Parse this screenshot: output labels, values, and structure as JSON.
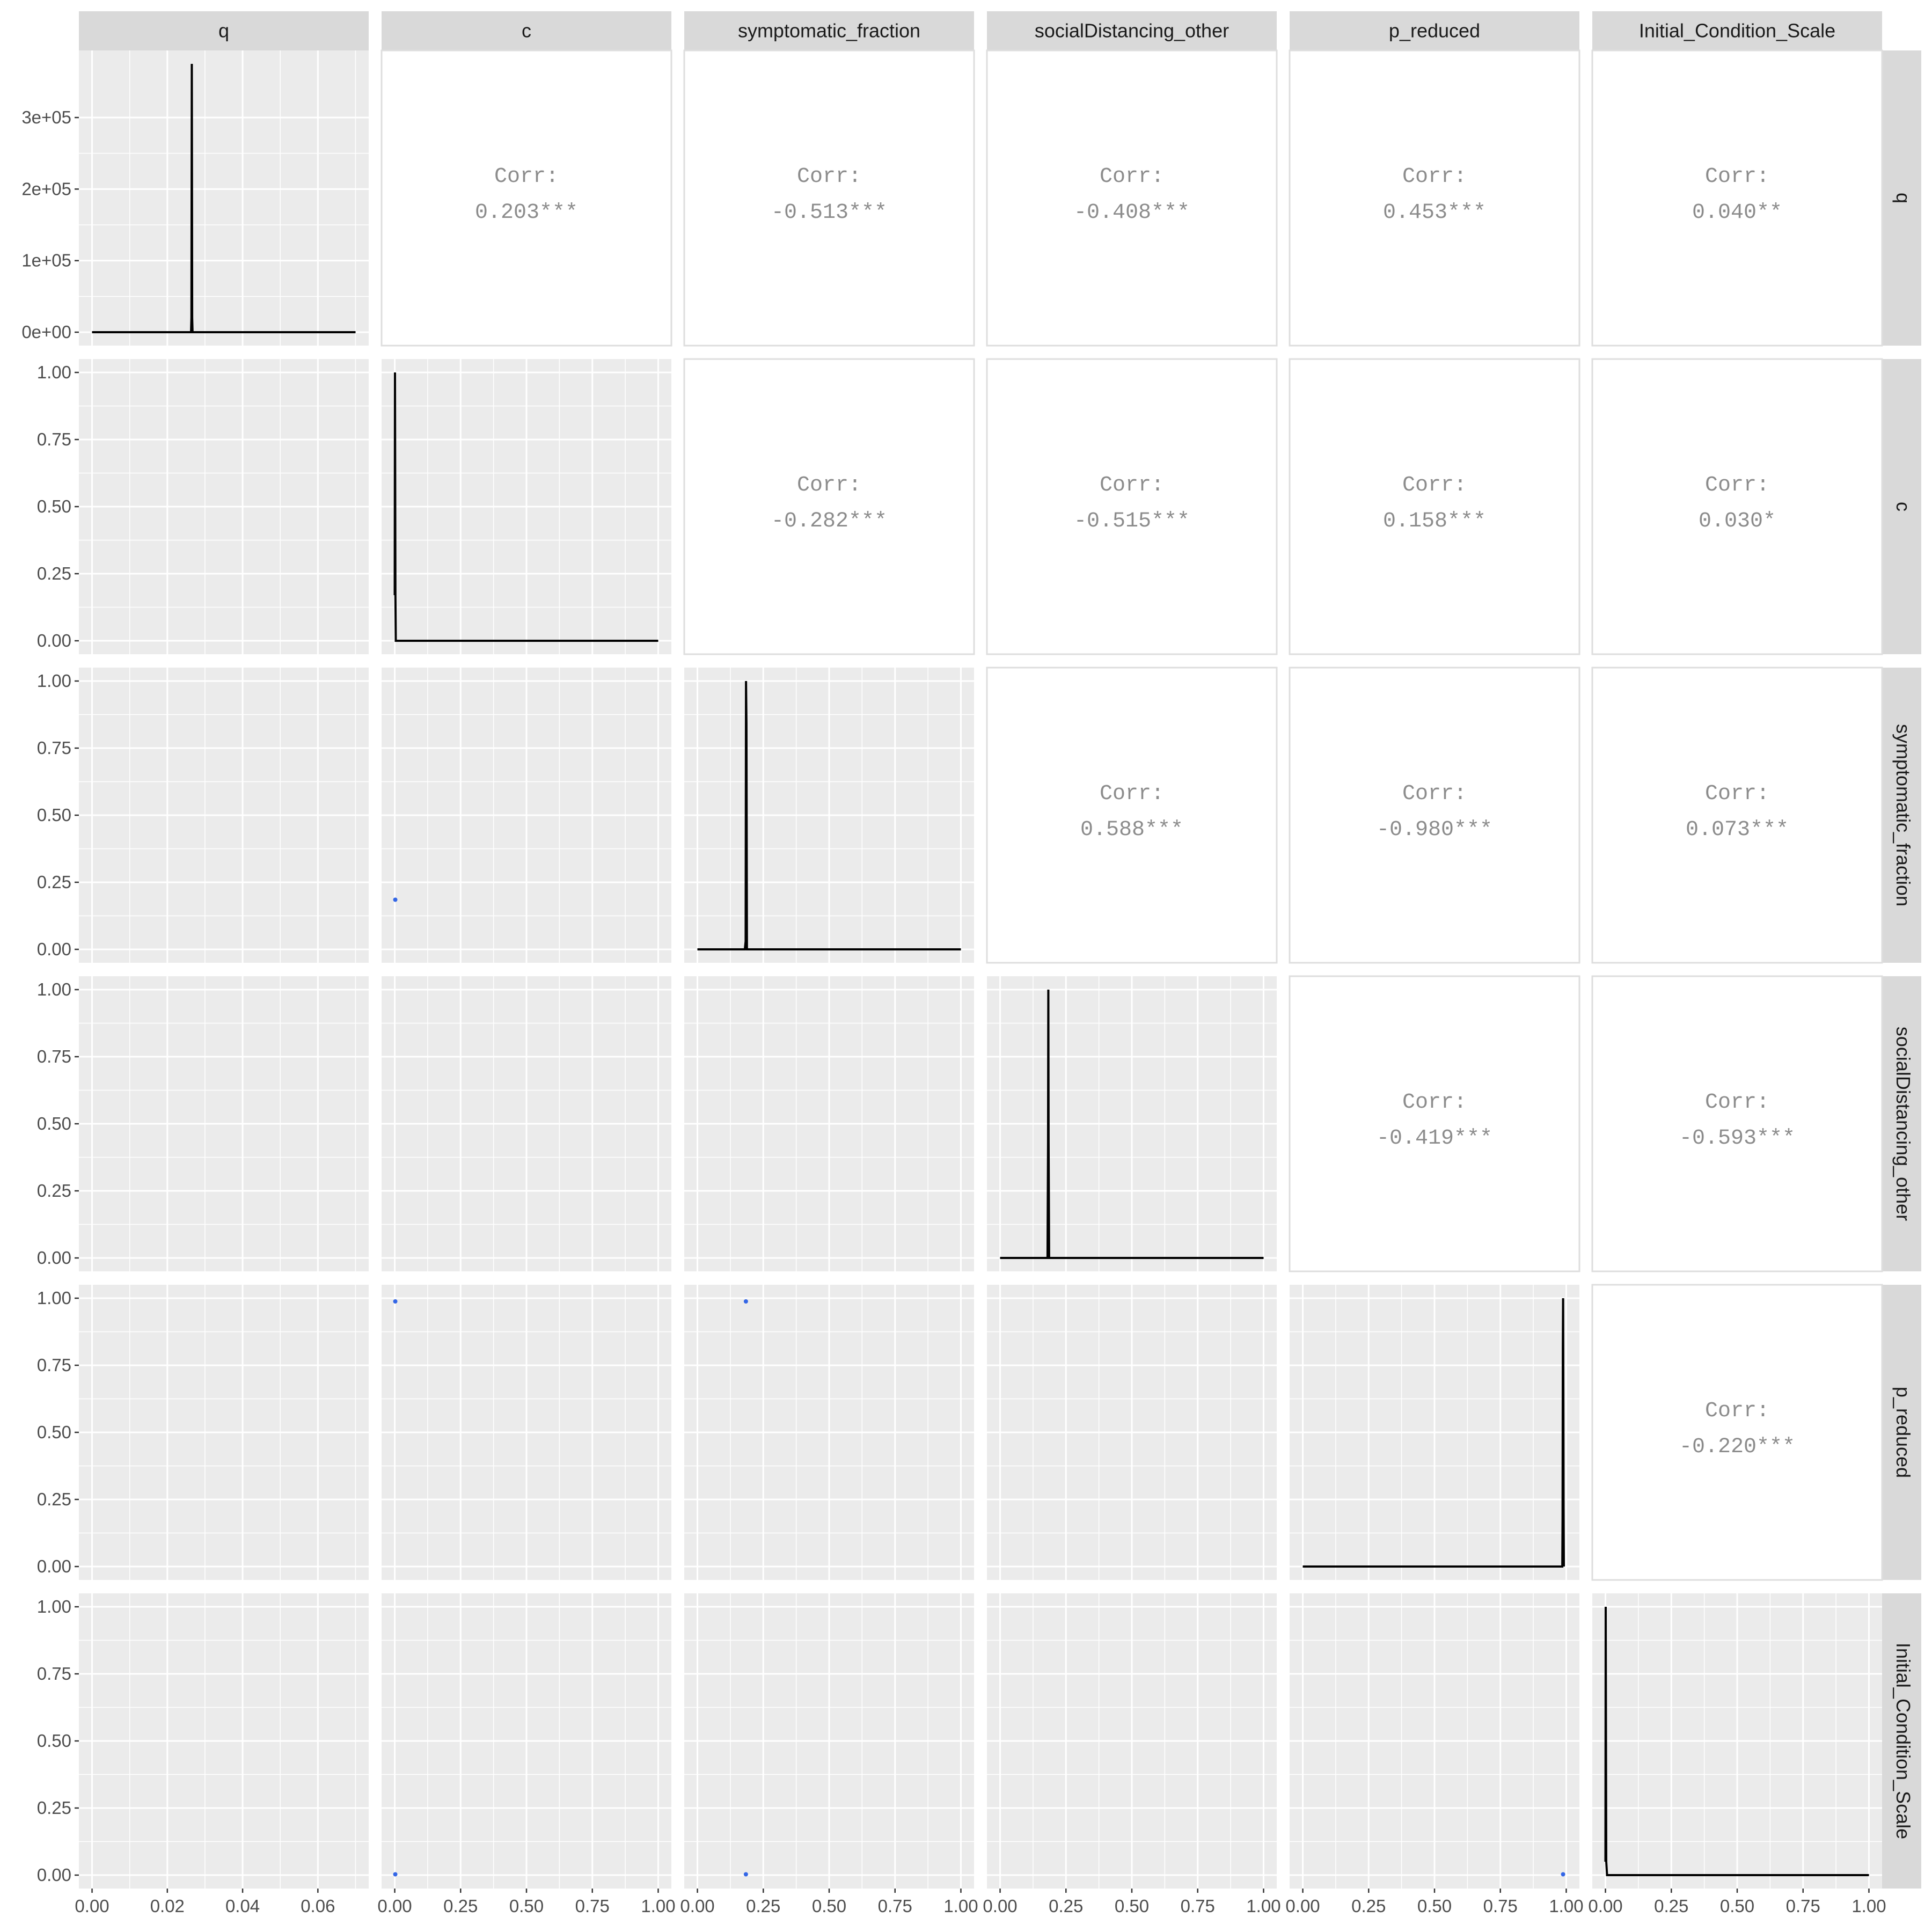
{
  "chart_data": {
    "type": "scatter",
    "variables": [
      "q",
      "c",
      "symptomatic_fraction",
      "socialDistancing_other",
      "p_reduced",
      "Initial_Condition_Scale"
    ],
    "corr_label": "Corr:",
    "correlations": [
      {
        "row": "q",
        "col": "c",
        "value": "0.203***"
      },
      {
        "row": "q",
        "col": "symptomatic_fraction",
        "value": "-0.513***"
      },
      {
        "row": "q",
        "col": "socialDistancing_other",
        "value": "-0.408***"
      },
      {
        "row": "q",
        "col": "p_reduced",
        "value": "0.453***"
      },
      {
        "row": "q",
        "col": "Initial_Condition_Scale",
        "value": "0.040**"
      },
      {
        "row": "c",
        "col": "symptomatic_fraction",
        "value": "-0.282***"
      },
      {
        "row": "c",
        "col": "socialDistancing_other",
        "value": "-0.515***"
      },
      {
        "row": "c",
        "col": "p_reduced",
        "value": "0.158***"
      },
      {
        "row": "c",
        "col": "Initial_Condition_Scale",
        "value": "0.030*"
      },
      {
        "row": "symptomatic_fraction",
        "col": "socialDistancing_other",
        "value": "0.588***"
      },
      {
        "row": "symptomatic_fraction",
        "col": "p_reduced",
        "value": "-0.980***"
      },
      {
        "row": "symptomatic_fraction",
        "col": "Initial_Condition_Scale",
        "value": "0.073***"
      },
      {
        "row": "socialDistancing_other",
        "col": "p_reduced",
        "value": "-0.419***"
      },
      {
        "row": "socialDistancing_other",
        "col": "Initial_Condition_Scale",
        "value": "-0.593***"
      },
      {
        "row": "p_reduced",
        "col": "Initial_Condition_Scale",
        "value": "-0.220***"
      }
    ],
    "x_axes": [
      {
        "var": "q",
        "ticks": [
          0.0,
          0.02,
          0.04,
          0.06
        ],
        "labels": [
          "0.00",
          "0.02",
          "0.04",
          "0.06"
        ],
        "range": [
          -0.0035,
          0.0735
        ]
      },
      {
        "var": "c",
        "ticks": [
          0,
          0.25,
          0.5,
          0.75,
          1.0
        ],
        "labels": [
          "0.00",
          "0.25",
          "0.50",
          "0.75",
          "1.00"
        ],
        "range": [
          -0.05,
          1.05
        ]
      },
      {
        "var": "symptomatic_fraction",
        "ticks": [
          0,
          0.25,
          0.5,
          0.75,
          1.0
        ],
        "labels": [
          "0.00",
          "0.25",
          "0.50",
          "0.75",
          "1.00"
        ],
        "range": [
          -0.05,
          1.05
        ]
      },
      {
        "var": "socialDistancing_other",
        "ticks": [
          0,
          0.25,
          0.5,
          0.75,
          1.0
        ],
        "labels": [
          "0.00",
          "0.25",
          "0.50",
          "0.75",
          "1.00"
        ],
        "range": [
          -0.05,
          1.05
        ]
      },
      {
        "var": "p_reduced",
        "ticks": [
          0,
          0.25,
          0.5,
          0.75,
          1.0
        ],
        "labels": [
          "0.00",
          "0.25",
          "0.50",
          "0.75",
          "1.00"
        ],
        "range": [
          -0.05,
          1.05
        ]
      },
      {
        "var": "Initial_Condition_Scale",
        "ticks": [
          0,
          0.25,
          0.5,
          0.75,
          1.0
        ],
        "labels": [
          "0.00",
          "0.25",
          "0.50",
          "0.75",
          "1.00"
        ],
        "range": [
          -0.05,
          1.05
        ]
      }
    ],
    "y_axes": [
      {
        "var": "q",
        "ticks": [
          0,
          100000,
          200000,
          300000
        ],
        "labels": [
          "0e+00",
          "1e+05",
          "2e+05",
          "3e+05"
        ],
        "range": [
          -18750,
          393750
        ]
      },
      {
        "var": "c",
        "ticks": [
          0,
          0.25,
          0.5,
          0.75,
          1.0
        ],
        "labels": [
          "0.00",
          "0.25",
          "0.50",
          "0.75",
          "1.00"
        ],
        "range": [
          -0.05,
          1.05
        ]
      },
      {
        "var": "symptomatic_fraction",
        "ticks": [
          0,
          0.25,
          0.5,
          0.75,
          1.0
        ],
        "labels": [
          "0.00",
          "0.25",
          "0.50",
          "0.75",
          "1.00"
        ],
        "range": [
          -0.05,
          1.05
        ]
      },
      {
        "var": "socialDistancing_other",
        "ticks": [
          0,
          0.25,
          0.5,
          0.75,
          1.0
        ],
        "labels": [
          "0.00",
          "0.25",
          "0.50",
          "0.75",
          "1.00"
        ],
        "range": [
          -0.05,
          1.05
        ]
      },
      {
        "var": "p_reduced",
        "ticks": [
          0,
          0.25,
          0.5,
          0.75,
          1.0
        ],
        "labels": [
          "0.00",
          "0.25",
          "0.50",
          "0.75",
          "1.00"
        ],
        "range": [
          -0.05,
          1.05
        ]
      },
      {
        "var": "Initial_Condition_Scale",
        "ticks": [
          0,
          0.25,
          0.5,
          0.75,
          1.0
        ],
        "labels": [
          "0.00",
          "0.25",
          "0.50",
          "0.75",
          "1.00"
        ],
        "range": [
          -0.05,
          1.05
        ]
      }
    ],
    "densities": [
      {
        "var": "q",
        "x": [
          0.0,
          0.0263,
          0.0264,
          0.0265,
          0.0266,
          0.0267,
          0.07
        ],
        "y": [
          0,
          0,
          20000,
          375000,
          20000,
          0,
          0
        ]
      },
      {
        "var": "c",
        "x": [
          0.0,
          0.001,
          0.0025,
          0.004,
          1.0
        ],
        "y": [
          0.17,
          1.0,
          0.17,
          0.0,
          0.0
        ]
      },
      {
        "var": "symptomatic_fraction",
        "x": [
          0.0,
          0.18,
          0.183,
          0.1845,
          0.186,
          0.188,
          1.0
        ],
        "y": [
          0,
          0,
          0.03,
          1.0,
          0.84,
          0,
          0
        ]
      },
      {
        "var": "socialDistancing_other",
        "x": [
          0.0,
          0.18,
          0.182,
          0.183,
          0.184,
          0.186,
          1.0
        ],
        "y": [
          0,
          0,
          0.43,
          1.0,
          0.43,
          0,
          0
        ]
      },
      {
        "var": "p_reduced",
        "x": [
          0.0,
          0.985,
          0.986,
          0.987,
          0.988,
          0.989,
          0.99,
          0.991
        ],
        "y": [
          0,
          0,
          0.18,
          0.82,
          1.0,
          0.62,
          0.22,
          0
        ]
      },
      {
        "var": "Initial_Condition_Scale",
        "x": [
          0.0,
          0.001,
          0.003,
          0.006,
          1.0
        ],
        "y": [
          0.05,
          1.0,
          0.05,
          0.0,
          0.0
        ]
      }
    ],
    "scatter": [
      {
        "x_var": "c",
        "y_var": "symptomatic_fraction",
        "points": [
          [
            0.002,
            0.185
          ]
        ]
      },
      {
        "x_var": "c",
        "y_var": "p_reduced",
        "points": [
          [
            0.002,
            0.988
          ]
        ]
      },
      {
        "x_var": "symptomatic_fraction",
        "y_var": "p_reduced",
        "points": [
          [
            0.184,
            0.988
          ]
        ]
      },
      {
        "x_var": "c",
        "y_var": "Initial_Condition_Scale",
        "points": [
          [
            0.002,
            0.003
          ]
        ]
      },
      {
        "x_var": "symptomatic_fraction",
        "y_var": "Initial_Condition_Scale",
        "points": [
          [
            0.184,
            0.003
          ]
        ]
      },
      {
        "x_var": "p_reduced",
        "y_var": "Initial_Condition_Scale",
        "points": [
          [
            0.988,
            0.003
          ]
        ]
      }
    ],
    "point_color": "#3366e6",
    "line_color": "#000000",
    "panel_background": "#ebebeb",
    "strip_background": "#d9d9d9",
    "corr_text_color": "#8c8c8c",
    "grid": true,
    "legend": "none"
  }
}
